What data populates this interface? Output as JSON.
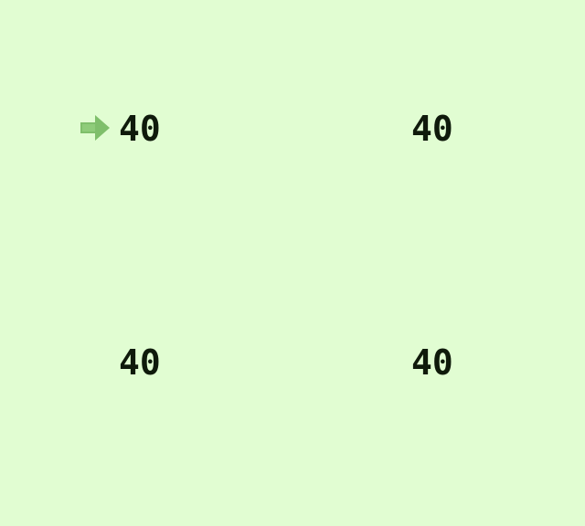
{
  "menu": {
    "options": [
      {
        "value": "40"
      },
      {
        "value": "40"
      },
      {
        "value": "40"
      },
      {
        "value": "40"
      }
    ],
    "cursor": {
      "icon": "arrow-right-icon",
      "color": "#7fbf6b"
    }
  },
  "palette": {
    "background": "#e1fdd2",
    "text": "#0f1a0b"
  }
}
